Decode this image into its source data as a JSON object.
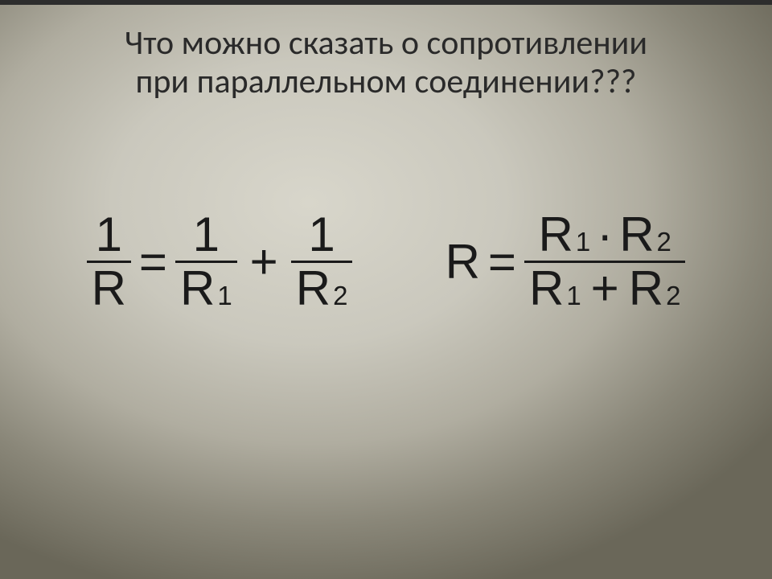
{
  "title": {
    "line1": "Что можно сказать о сопротивлении",
    "line2": "при параллельном соединении???",
    "fontsize": 42,
    "color": "#2a2a2a"
  },
  "formulas": {
    "fontsize": 60,
    "color": "#1a1a1a",
    "bar_thickness": 3,
    "left": {
      "frac1": {
        "num": "1",
        "den": "R"
      },
      "eq": "=",
      "frac2": {
        "num": "1",
        "den_base": "R",
        "den_sub": "1"
      },
      "plus": "+",
      "frac3": {
        "num": "1",
        "den_base": "R",
        "den_sub": "2"
      }
    },
    "right": {
      "lhs": "R",
      "eq": "=",
      "num_t1_base": "R",
      "num_t1_sub": "1",
      "num_dot": "·",
      "num_t2_base": "R",
      "num_t2_sub": "2",
      "den_t1_base": "R",
      "den_t1_sub": "1",
      "den_plus": "+",
      "den_t2_base": "R",
      "den_t2_sub": "2"
    }
  },
  "background": {
    "center_color": "#d8d6cb",
    "edge_color": "#6a6759"
  }
}
